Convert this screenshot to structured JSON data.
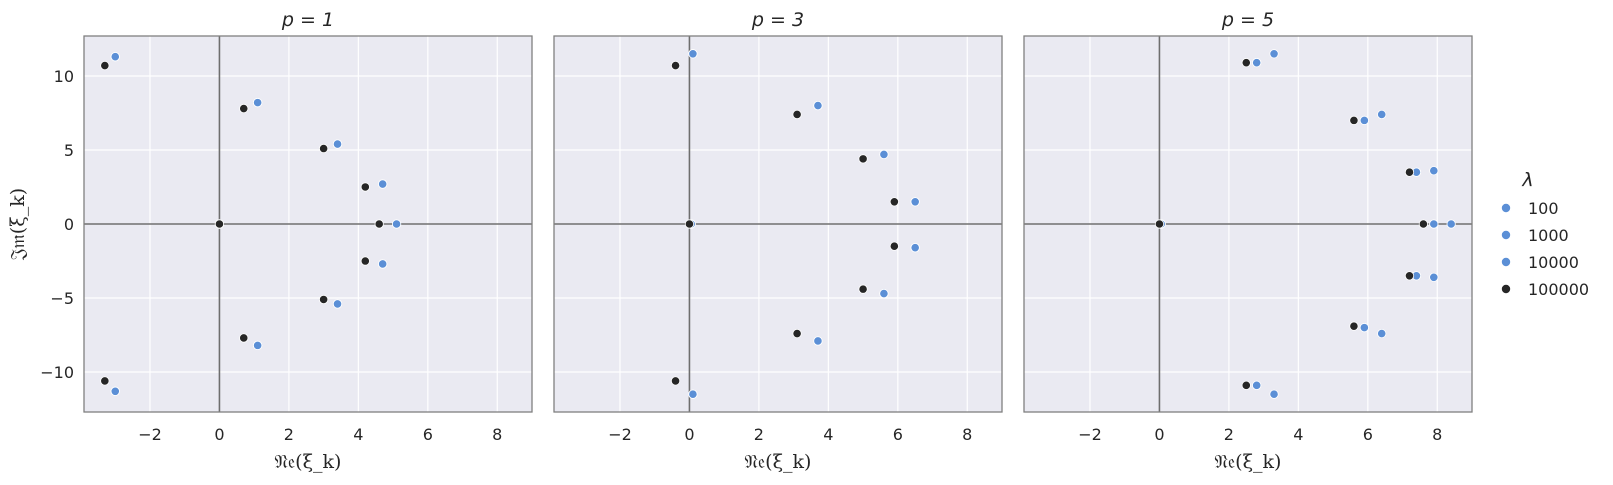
{
  "colors": {
    "panel_bg": "#eaeaf2",
    "grid": "#ffffff",
    "frame": "#808080",
    "zero_line": "#6e6e6e",
    "light_points": "#5b8fd6",
    "dark_points": "#262626"
  },
  "chart_data": {
    "type": "scatter",
    "xlabel": "𝔑𝔢(ξ_k)",
    "ylabel": "𝔍𝔪(ξ_k)",
    "xlim": [
      -3.9,
      9.0
    ],
    "ylim": [
      -12.7,
      12.7
    ],
    "xticks": [
      -2,
      0,
      2,
      4,
      6,
      8
    ],
    "yticks": [
      10,
      5,
      0,
      -5,
      -10
    ],
    "grid": true,
    "legend": {
      "title": "λ",
      "placement": "right",
      "entries": [
        {
          "label": "100",
          "color": "#5b8fd6"
        },
        {
          "label": "1000",
          "color": "#5b8fd6"
        },
        {
          "label": "10000",
          "color": "#5b8fd6"
        },
        {
          "label": "100000",
          "color": "#262626"
        }
      ]
    },
    "panels": [
      {
        "title": "p = 1",
        "series": [
          {
            "name": "100",
            "points": [
              [
                0,
                0
              ],
              [
                -3.0,
                11.3
              ],
              [
                -3.0,
                -11.3
              ],
              [
                1.1,
                8.2
              ],
              [
                1.1,
                -8.2
              ],
              [
                3.4,
                5.4
              ],
              [
                3.4,
                -5.4
              ],
              [
                4.7,
                2.7
              ],
              [
                4.7,
                -2.7
              ],
              [
                5.1,
                0
              ]
            ]
          },
          {
            "name": "1000",
            "points": [
              [
                0,
                0
              ],
              [
                -3.0,
                11.3
              ],
              [
                -3.0,
                -11.3
              ],
              [
                1.1,
                8.2
              ],
              [
                1.1,
                -8.2
              ],
              [
                3.4,
                5.4
              ],
              [
                3.4,
                -5.4
              ],
              [
                4.7,
                2.7
              ],
              [
                4.7,
                -2.7
              ],
              [
                5.1,
                0
              ]
            ]
          },
          {
            "name": "10000",
            "points": [
              [
                0,
                0
              ],
              [
                -3.0,
                11.3
              ],
              [
                -3.0,
                -11.3
              ],
              [
                1.1,
                8.2
              ],
              [
                1.1,
                -8.2
              ],
              [
                3.4,
                5.4
              ],
              [
                3.4,
                -5.4
              ],
              [
                4.7,
                2.7
              ],
              [
                4.7,
                -2.7
              ],
              [
                5.1,
                0
              ]
            ]
          },
          {
            "name": "100000",
            "points": [
              [
                0,
                0
              ],
              [
                -3.3,
                10.7
              ],
              [
                -3.3,
                -10.6
              ],
              [
                0.7,
                7.8
              ],
              [
                0.7,
                -7.7
              ],
              [
                3.0,
                5.1
              ],
              [
                3.0,
                -5.1
              ],
              [
                4.2,
                2.5
              ],
              [
                4.2,
                -2.5
              ],
              [
                4.6,
                0
              ]
            ]
          }
        ]
      },
      {
        "title": "p = 3",
        "series": [
          {
            "name": "100",
            "points": [
              [
                0.05,
                0
              ],
              [
                0.1,
                11.5
              ],
              [
                0.1,
                -11.5
              ],
              [
                3.7,
                8.0
              ],
              [
                3.7,
                -7.9
              ],
              [
                5.6,
                4.7
              ],
              [
                5.6,
                -4.7
              ],
              [
                6.5,
                1.5
              ],
              [
                6.5,
                -1.6
              ]
            ]
          },
          {
            "name": "1000",
            "points": [
              [
                0.05,
                0
              ],
              [
                0.1,
                11.5
              ],
              [
                0.1,
                -11.5
              ],
              [
                3.7,
                8.0
              ],
              [
                3.7,
                -7.9
              ],
              [
                5.6,
                4.7
              ],
              [
                5.6,
                -4.7
              ],
              [
                6.5,
                1.5
              ],
              [
                6.5,
                -1.6
              ]
            ]
          },
          {
            "name": "10000",
            "points": [
              [
                0.05,
                0
              ],
              [
                0.1,
                11.5
              ],
              [
                0.1,
                -11.5
              ],
              [
                3.7,
                8.0
              ],
              [
                3.7,
                -7.9
              ],
              [
                5.6,
                4.7
              ],
              [
                5.6,
                -4.7
              ],
              [
                6.5,
                1.5
              ],
              [
                6.5,
                -1.6
              ]
            ]
          },
          {
            "name": "100000",
            "points": [
              [
                0,
                0
              ],
              [
                -0.4,
                10.7
              ],
              [
                -0.4,
                -10.6
              ],
              [
                3.1,
                7.4
              ],
              [
                3.1,
                -7.4
              ],
              [
                5.0,
                4.4
              ],
              [
                5.0,
                -4.4
              ],
              [
                5.9,
                1.5
              ],
              [
                5.9,
                -1.5
              ]
            ]
          }
        ]
      },
      {
        "title": "p = 5",
        "series": [
          {
            "name": "100",
            "points": [
              [
                0.05,
                0
              ],
              [
                3.3,
                11.5
              ],
              [
                3.3,
                -11.5
              ],
              [
                6.4,
                7.4
              ],
              [
                6.4,
                -7.4
              ],
              [
                7.9,
                3.6
              ],
              [
                7.9,
                -3.6
              ],
              [
                8.4,
                0
              ]
            ]
          },
          {
            "name": "1000",
            "points": [
              [
                0.05,
                0
              ],
              [
                2.8,
                10.9
              ],
              [
                2.8,
                -10.9
              ],
              [
                5.9,
                7.0
              ],
              [
                5.9,
                -7.0
              ],
              [
                7.4,
                3.5
              ],
              [
                7.4,
                -3.5
              ],
              [
                7.9,
                0
              ]
            ]
          },
          {
            "name": "10000",
            "points": [
              [
                0.05,
                0
              ],
              [
                2.8,
                10.9
              ],
              [
                2.8,
                -10.9
              ],
              [
                5.9,
                7.0
              ],
              [
                5.9,
                -7.0
              ],
              [
                7.4,
                3.5
              ],
              [
                7.4,
                -3.5
              ],
              [
                7.9,
                0
              ]
            ]
          },
          {
            "name": "100000",
            "points": [
              [
                0,
                0
              ],
              [
                2.5,
                10.9
              ],
              [
                2.5,
                -10.9
              ],
              [
                5.6,
                7.0
              ],
              [
                5.6,
                -6.9
              ],
              [
                7.2,
                3.5
              ],
              [
                7.2,
                -3.5
              ],
              [
                7.6,
                0
              ]
            ]
          }
        ]
      }
    ]
  }
}
